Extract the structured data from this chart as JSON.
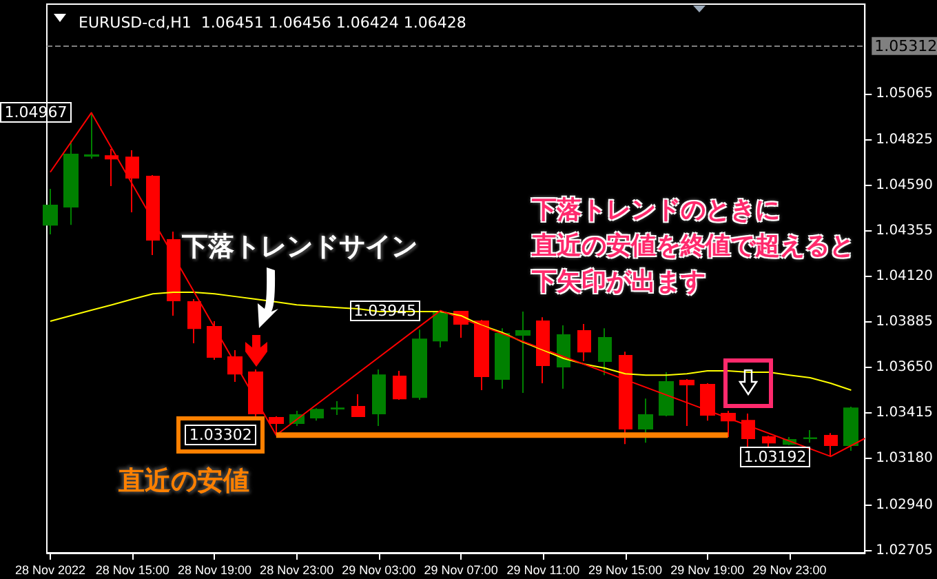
{
  "chart_data": {
    "type": "candlestick",
    "title": "EURUSD-cd,H1  1.06451 1.06456 1.06424 1.06428",
    "x": [
      "2022-11-28T11:00",
      "2022-11-28T12:00",
      "2022-11-28T13:00",
      "2022-11-28T14:00",
      "2022-11-28T15:00",
      "2022-11-28T16:00",
      "2022-11-28T17:00",
      "2022-11-28T18:00",
      "2022-11-28T19:00",
      "2022-11-28T20:00",
      "2022-11-28T21:00",
      "2022-11-28T22:00",
      "2022-11-28T23:00",
      "2022-11-29T00:00",
      "2022-11-29T01:00",
      "2022-11-29T02:00",
      "2022-11-29T03:00",
      "2022-11-29T04:00",
      "2022-11-29T05:00",
      "2022-11-29T06:00",
      "2022-11-29T07:00",
      "2022-11-29T08:00",
      "2022-11-29T09:00",
      "2022-11-29T10:00",
      "2022-11-29T11:00",
      "2022-11-29T12:00",
      "2022-11-29T13:00",
      "2022-11-29T14:00",
      "2022-11-29T15:00",
      "2022-11-29T16:00",
      "2022-11-29T17:00",
      "2022-11-29T18:00",
      "2022-11-29T19:00",
      "2022-11-29T20:00",
      "2022-11-29T21:00",
      "2022-11-29T22:00",
      "2022-11-29T23:00",
      "2022-11-30T00:00",
      "2022-11-30T01:00",
      "2022-11-30T02:00"
    ],
    "xlim": [
      "2022-11-28T10:50",
      "2022-11-30T02:40"
    ],
    "xticks": [
      {
        "value": "2022-11-28T11:00",
        "label": "28 Nov 2022"
      },
      {
        "value": "2022-11-28T15:00",
        "label": "28 Nov 15:00"
      },
      {
        "value": "2022-11-28T19:00",
        "label": "28 Nov 19:00"
      },
      {
        "value": "2022-11-28T23:00",
        "label": "28 Nov 23:00"
      },
      {
        "value": "2022-11-29T03:00",
        "label": "29 Nov 03:00"
      },
      {
        "value": "2022-11-29T07:00",
        "label": "29 Nov 07:00"
      },
      {
        "value": "2022-11-29T11:00",
        "label": "29 Nov 11:00"
      },
      {
        "value": "2022-11-29T15:00",
        "label": "29 Nov 15:00"
      },
      {
        "value": "2022-11-29T19:00",
        "label": "29 Nov 19:00"
      },
      {
        "value": "2022-11-29T23:00",
        "label": "29 Nov 23:00"
      }
    ],
    "ylim": [
      1.02694,
      1.05528
    ],
    "yticks": [
      1.05065,
      1.04825,
      {
        "value": 1.0459,
        "label": "1.04590"
      },
      1.04355,
      {
        "value": 1.0412,
        "label": "1.04120"
      },
      1.03885,
      {
        "value": 1.0365,
        "label": "1.03650"
      },
      1.03415,
      {
        "value": 1.0318,
        "label": "1.03180"
      },
      {
        "value": 1.0294,
        "label": "1.02940"
      },
      1.02705
    ],
    "ohlc": [
      [
        1.04388,
        1.04574,
        1.04339,
        1.04488
      ],
      [
        1.04481,
        1.04823,
        1.04388,
        1.04752
      ],
      [
        1.04744,
        1.04967,
        1.0473,
        1.04748
      ],
      [
        1.04744,
        1.0478,
        1.04588,
        1.0473
      ],
      [
        1.04737,
        1.04773,
        1.04453,
        1.04631
      ],
      [
        1.04638,
        1.04645,
        1.04232,
        1.0431
      ],
      [
        1.0431,
        1.04353,
        1.03919,
        1.03997
      ],
      [
        1.0399,
        1.04004,
        1.03776,
        1.03854
      ],
      [
        1.03862,
        1.0389,
        1.03691,
        1.03705
      ],
      [
        1.03705,
        1.03741,
        1.03577,
        1.03619
      ],
      [
        1.03627,
        1.03641,
        1.03385,
        1.03413
      ],
      [
        1.03392,
        1.03399,
        1.03302,
        1.03363
      ],
      [
        1.03363,
        1.03427,
        1.03349,
        1.03406
      ],
      [
        1.03392,
        1.03441,
        1.03377,
        1.03434
      ],
      [
        1.03438,
        1.03477,
        1.03406,
        1.03441
      ],
      [
        1.03449,
        1.03513,
        1.03399,
        1.03399
      ],
      [
        1.03413,
        1.03641,
        1.03349,
        1.03612
      ],
      [
        1.03605,
        1.03634,
        1.03484,
        1.03491
      ],
      [
        1.03498,
        1.03847,
        1.03484,
        1.03797
      ],
      [
        1.0379,
        1.03945,
        1.03755,
        1.03933
      ],
      [
        1.0394,
        1.0394,
        1.03805,
        1.03876
      ],
      [
        1.0389,
        1.03897,
        1.03534,
        1.03605
      ],
      [
        1.03591,
        1.03854,
        1.03541,
        1.03826
      ],
      [
        1.03819,
        1.0394,
        1.0352,
        1.0384
      ],
      [
        1.0389,
        1.03911,
        1.0357,
        1.03662
      ],
      [
        1.03655,
        1.03869,
        1.03541,
        1.03819
      ],
      [
        1.0384,
        1.03876,
        1.03684,
        1.03733
      ],
      [
        1.03684,
        1.03854,
        1.03612,
        1.03805
      ],
      [
        1.03712,
        1.03733,
        1.03256,
        1.03335
      ],
      [
        1.03335,
        1.03491,
        1.03263,
        1.03406
      ],
      [
        1.03406,
        1.03627,
        1.03399,
        1.03577
      ],
      [
        1.03584,
        1.03591,
        1.03349,
        1.03563
      ],
      [
        1.03563,
        1.0357,
        1.03377,
        1.03406
      ],
      [
        1.03413,
        1.03427,
        1.03292,
        1.03377
      ],
      [
        1.03377,
        1.03413,
        1.03235,
        1.03285
      ],
      [
        1.03292,
        1.03299,
        1.03242,
        1.03263
      ],
      [
        1.03256,
        1.03292,
        1.03249,
        1.03278
      ],
      [
        1.03285,
        1.03328,
        1.03263,
        1.03287
      ],
      [
        1.03299,
        1.03313,
        1.03192,
        1.03249
      ],
      [
        1.03249,
        1.03449,
        1.03221,
        1.03441
      ]
    ],
    "colors": [
      "#008000",
      "#008000",
      "#008000",
      "#ff0000",
      "#ff0000",
      "#ff0000",
      "#ff0000",
      "#ff0000",
      "#ff0000",
      "#ff0000",
      "#ff0000",
      "#ff0000",
      "#008000",
      "#008000",
      "#008000",
      "#ff0000",
      "#008000",
      "#ff0000",
      "#008000",
      "#008000",
      "#ff0000",
      "#ff0000",
      "#008000",
      "#008000",
      "#ff0000",
      "#008000",
      "#ff0000",
      "#008000",
      "#ff0000",
      "#008000",
      "#008000",
      "#ff0000",
      "#ff0000",
      "#ff0000",
      "#ff0000",
      "#ff0000",
      "#008000",
      "#008000",
      "#ff0000",
      "#008000"
    ],
    "series": [
      {
        "type": "line",
        "color": "#ffff00",
        "values": [
          1.0389,
          1.03919,
          1.03947,
          1.03975,
          1.04004,
          1.04032,
          1.0404,
          1.0404,
          1.04032,
          1.04018,
          1.04004,
          1.0399,
          1.03975,
          1.03968,
          1.03961,
          1.03954,
          1.0394,
          1.0394,
          1.0394,
          1.0394,
          1.03919,
          1.03869,
          1.03833,
          1.03783,
          1.03741,
          1.03698,
          1.03669,
          1.03648,
          1.03619,
          1.03612,
          1.03612,
          1.03619,
          1.03634,
          1.03634,
          1.03627,
          1.03627,
          1.03612,
          1.03598,
          1.0357,
          1.03534
        ]
      },
      {
        "type": "line",
        "color": "#ff0000",
        "x": [
          "2022-11-28T11:00",
          "2022-11-28T13:00",
          "2022-11-28T22:00",
          "2022-11-29T06:00",
          "2022-11-30T01:00",
          "2022-11-30T02:40"
        ],
        "values": [
          1.0466,
          1.04967,
          1.03302,
          1.03945,
          1.03192,
          1.03285
        ]
      },
      {
        "type": "line",
        "color": "#ff8000",
        "x": [
          "2022-11-28T22:00",
          "2022-11-29T20:00"
        ],
        "values": [
          1.03302,
          1.03302
        ]
      }
    ],
    "ref_lines": [
      {
        "axis": "y",
        "value": 1.05312,
        "label": "1.05312",
        "color": "#808080",
        "line_style": "dashed"
      }
    ],
    "annotations": [
      {
        "text": "1.04967",
        "x": "2022-11-28T13:00",
        "y": 1.04967
      },
      {
        "text": "1.03302",
        "x": "2022-11-28T22:00",
        "y": 1.03302
      },
      {
        "text": "1.03945",
        "x": "2022-11-29T06:00",
        "y": 1.03945
      },
      {
        "text": "1.03192",
        "x": "2022-11-30T01:00",
        "y": 1.03192
      },
      "下落トレンドサイン",
      "直近の安値",
      "下落トレンドのときに",
      "直近の安値を終値で超えると",
      "下矢印が出ます"
    ],
    "grid": false,
    "marker": "none",
    "line_style": "solid"
  }
}
